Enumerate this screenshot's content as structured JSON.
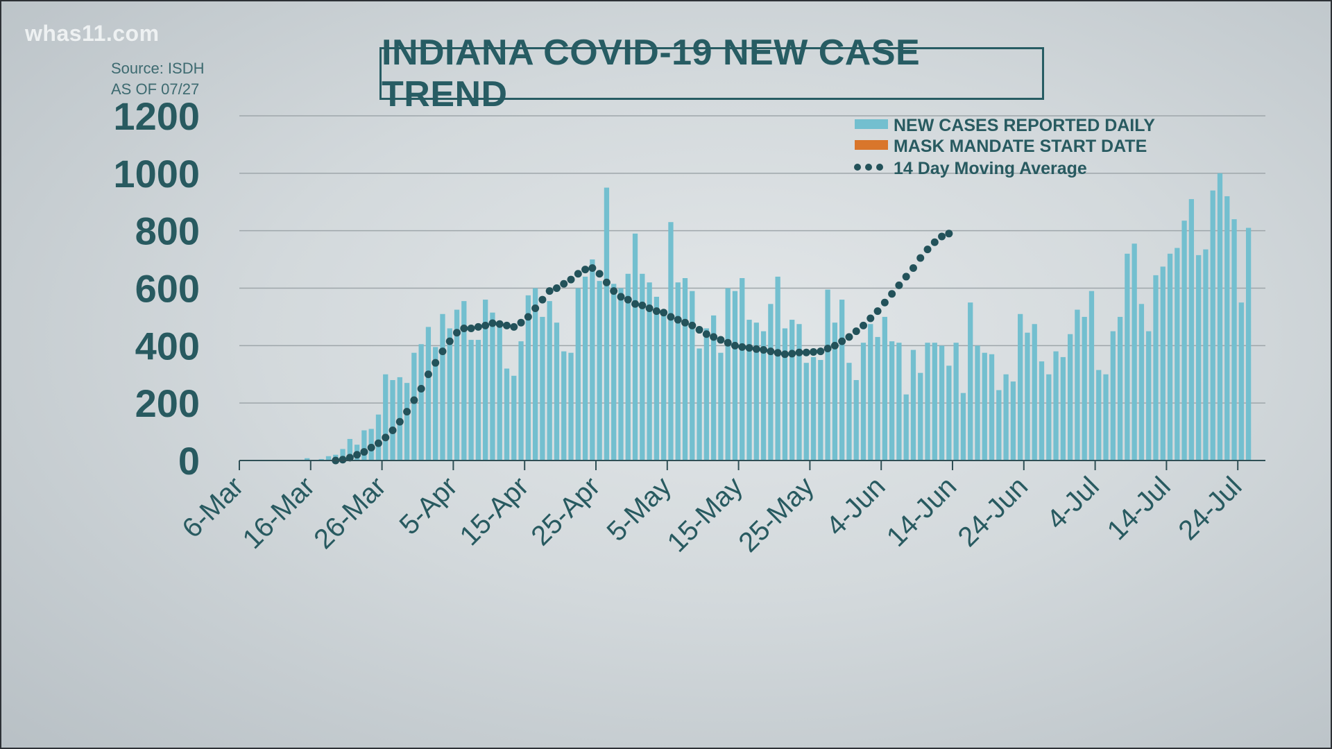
{
  "header": {
    "logo": "whas11.com",
    "source_line1": "Source: ISDH",
    "source_line2": "AS OF 07/27"
  },
  "colors": {
    "bar": "#73bfcf",
    "mask_bar": "#d9762b",
    "moving_avg": "#23525a",
    "text": "#285a60",
    "grid": "#9ea6aa"
  },
  "chart_data": {
    "type": "bar",
    "title": "INDIANA COVID-19 NEW CASE TREND",
    "xlabel": "",
    "ylabel": "",
    "ylim": [
      0,
      1200
    ],
    "yticks": [
      0,
      200,
      400,
      600,
      800,
      1000,
      1200
    ],
    "grid": true,
    "legend_position": "top-right",
    "legend": [
      {
        "label": "NEW CASES REPORTED DAILY",
        "type": "bar"
      },
      {
        "label": "MASK MANDATE START DATE",
        "type": "bar-highlight"
      },
      {
        "label": "14 Day Moving Average",
        "type": "dots"
      }
    ],
    "start_date": "6-Mar",
    "x_tick_labels": [
      "6-Mar",
      "16-Mar",
      "26-Mar",
      "5-Apr",
      "15-Apr",
      "25-Apr",
      "5-May",
      "15-May",
      "25-May",
      "4-Jun",
      "14-Jun",
      "24-Jun",
      "4-Jul",
      "14-Jul",
      "24-Jul"
    ],
    "x_tick_interval_days": 10,
    "mask_mandate_day_index": 143,
    "series": [
      {
        "name": "NEW CASES REPORTED DAILY",
        "values": [
          0,
          0,
          0,
          0,
          0,
          0,
          0,
          0,
          0,
          8,
          0,
          5,
          15,
          20,
          40,
          75,
          55,
          105,
          110,
          160,
          300,
          280,
          290,
          270,
          375,
          405,
          465,
          395,
          510,
          460,
          525,
          555,
          420,
          420,
          560,
          515,
          480,
          320,
          295,
          415,
          575,
          600,
          500,
          555,
          480,
          380,
          375,
          600,
          640,
          700,
          625,
          950,
          615,
          600,
          650,
          790,
          650,
          620,
          570,
          525,
          830,
          620,
          635,
          590,
          390,
          460,
          505,
          375,
          600,
          590,
          635,
          490,
          480,
          450,
          545,
          640,
          460,
          490,
          475,
          340,
          360,
          350,
          595,
          480,
          560,
          340,
          280,
          410,
          475,
          430,
          500,
          415,
          410,
          230,
          385,
          305,
          410,
          410,
          400,
          330,
          410,
          235,
          550,
          400,
          375,
          370,
          245,
          300,
          275,
          510,
          445,
          475,
          345,
          300,
          380,
          360,
          440,
          525,
          500,
          590,
          315,
          300,
          450,
          500,
          720,
          755,
          545,
          450,
          645,
          675,
          720,
          740,
          835,
          910,
          715,
          735,
          940,
          1000,
          920,
          840,
          550,
          810
        ]
      },
      {
        "name": "14 Day Moving Average",
        "start_index": 13,
        "values": [
          0,
          3,
          10,
          20,
          30,
          45,
          60,
          80,
          105,
          135,
          170,
          210,
          250,
          300,
          340,
          380,
          415,
          445,
          460,
          460,
          465,
          470,
          478,
          475,
          470,
          465,
          480,
          500,
          530,
          560,
          590,
          600,
          615,
          630,
          650,
          665,
          670,
          650,
          620,
          590,
          570,
          560,
          545,
          540,
          530,
          520,
          515,
          500,
          490,
          480,
          470,
          455,
          440,
          430,
          420,
          410,
          400,
          395,
          392,
          388,
          385,
          380,
          375,
          370,
          372,
          376,
          376,
          378,
          380,
          390,
          400,
          415,
          430,
          450,
          470,
          495,
          520,
          550,
          580,
          610,
          640,
          670,
          705,
          735,
          760,
          780,
          790
        ]
      }
    ]
  }
}
